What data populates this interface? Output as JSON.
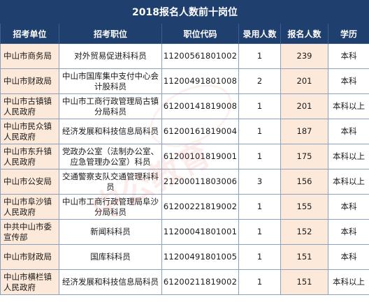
{
  "title": "2018报名人数前十岗位",
  "headers": {
    "unit": "招考单位",
    "position": "招考职位",
    "code": "职位代码",
    "hire": "录用人数",
    "applicants": "报名人数",
    "education": "学历"
  },
  "rows": [
    {
      "unit": "中山市商务局",
      "position": "对外贸易促进科科员",
      "code": "11200561801002",
      "hire": "1",
      "applicants": "239",
      "education": "本科"
    },
    {
      "unit": "中山市财政局",
      "position": "中山市国库集中支付中心会计股科员",
      "code": "11200491801008",
      "hire": "2",
      "applicants": "201",
      "education": "本科"
    },
    {
      "unit": "中山市古镇镇人民政府",
      "position": "中山市工商行政管理局古镇分局科员",
      "code": "61200141819008",
      "hire": "1",
      "applicants": "201",
      "education": "本科以上"
    },
    {
      "unit": "中山市民众镇人民政府",
      "position": "经济发展和科技信息局科员",
      "code": "61200161819004",
      "hire": "1",
      "applicants": "187",
      "education": "本科"
    },
    {
      "unit": "中山市东升镇人民政府",
      "position": "党政办公室（法制办公室、应急管理办公室）科员",
      "code": "61200101819001",
      "hire": "1",
      "applicants": "175",
      "education": "本科以上"
    },
    {
      "unit": "中山市公安局",
      "position": "交通警察支队交通管理科科员",
      "code": "21200011803006",
      "hire": "3",
      "applicants": "156",
      "education": "本科以上"
    },
    {
      "unit": "中山市阜沙镇人民政府",
      "position": "中山市工商行政管理局阜沙分局科员",
      "code": "61200221819002",
      "hire": "1",
      "applicants": "155",
      "education": "本科"
    },
    {
      "unit": "中共中山市委宣传部",
      "position": "新闻科科员",
      "code": "11200041801001",
      "hire": "1",
      "applicants": "152",
      "education": "本科"
    },
    {
      "unit": "中山市财政局",
      "position": "国库科科员",
      "code": "11200491801005",
      "hire": "1",
      "applicants": "151",
      "education": "本科"
    },
    {
      "unit": "中山市横栏镇人民政府",
      "position": "经济发展和科技信息局科员",
      "code": "61200211819002",
      "hire": "1",
      "applicants": "151",
      "education": "本科以上"
    }
  ],
  "watermark": {
    "text": "中公教育"
  },
  "colors": {
    "header_bg": "#1f3f6e",
    "header_text": "#ffffff",
    "highlight_bg": "#fde9d9",
    "border": "#8aa0bf"
  }
}
